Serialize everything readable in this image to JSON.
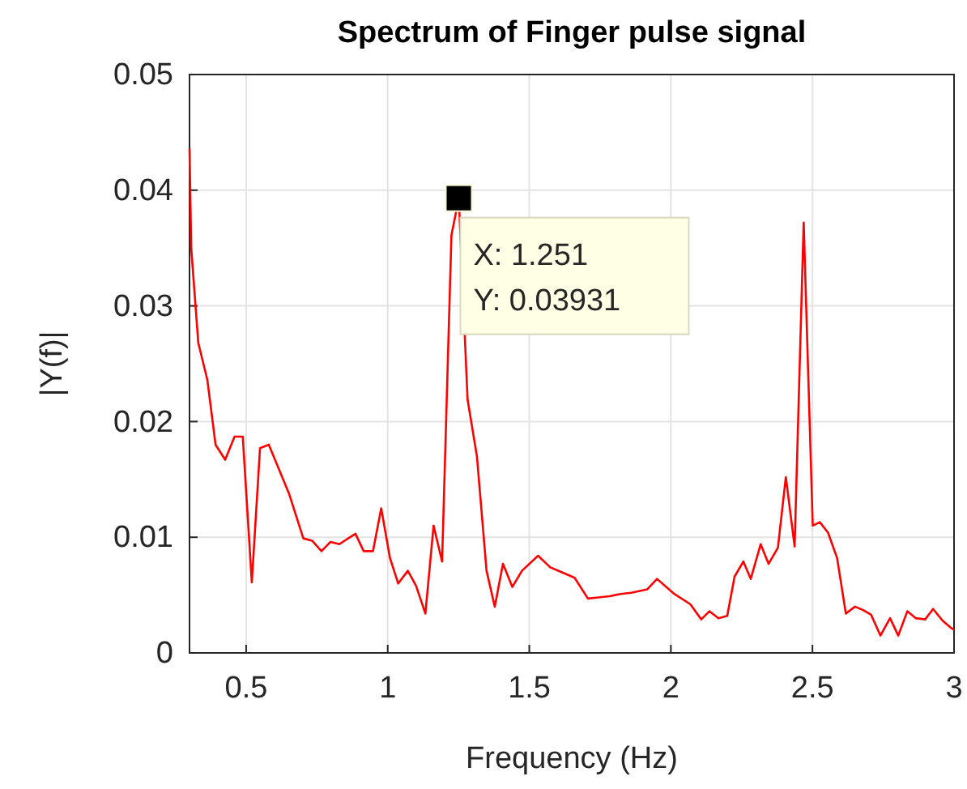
{
  "chart_data": {
    "type": "line",
    "title": "Spectrum of Finger pulse signal",
    "xlabel": "Frequency (Hz)",
    "ylabel": "|Y(f)|",
    "x": [
      0.3,
      0.306,
      0.331,
      0.363,
      0.392,
      0.426,
      0.459,
      0.488,
      0.52,
      0.549,
      0.58,
      0.612,
      0.651,
      0.702,
      0.733,
      0.766,
      0.798,
      0.829,
      0.886,
      0.915,
      0.948,
      0.977,
      1.008,
      1.037,
      1.071,
      1.1,
      1.133,
      1.162,
      1.192,
      1.225,
      1.251,
      1.282,
      1.315,
      1.349,
      1.378,
      1.407,
      1.44,
      1.474,
      1.531,
      1.574,
      1.612,
      1.66,
      1.707,
      1.745,
      1.784,
      1.822,
      1.86,
      1.917,
      1.951,
      2.012,
      2.069,
      2.107,
      2.136,
      2.168,
      2.199,
      2.225,
      2.256,
      2.282,
      2.317,
      2.345,
      2.378,
      2.406,
      2.437,
      2.469,
      2.501,
      2.526,
      2.555,
      2.587,
      2.618,
      2.65,
      2.679,
      2.707,
      2.74,
      2.774,
      2.803,
      2.835,
      2.865,
      2.898,
      2.926,
      2.959,
      2.987,
      3.0
    ],
    "series": [
      {
        "color": "#ff0000",
        "values": [
          0.0436,
          0.035,
          0.0268,
          0.0236,
          0.018,
          0.0167,
          0.0187,
          0.0187,
          0.0061,
          0.0177,
          0.018,
          0.0161,
          0.0138,
          0.0099,
          0.0097,
          0.0088,
          0.0096,
          0.0094,
          0.0103,
          0.0088,
          0.0088,
          0.0125,
          0.0082,
          0.006,
          0.0071,
          0.0058,
          0.0034,
          0.011,
          0.0079,
          0.0361,
          0.03931,
          0.0219,
          0.017,
          0.0071,
          0.004,
          0.0077,
          0.0057,
          0.0071,
          0.0084,
          0.0074,
          0.007,
          0.0065,
          0.0047,
          0.0048,
          0.0049,
          0.0051,
          0.0052,
          0.0055,
          0.0064,
          0.0051,
          0.0042,
          0.0029,
          0.0036,
          0.003,
          0.0032,
          0.0066,
          0.0079,
          0.0064,
          0.0094,
          0.0077,
          0.0091,
          0.0152,
          0.0092,
          0.0372,
          0.011,
          0.0113,
          0.0104,
          0.0082,
          0.0034,
          0.004,
          0.0037,
          0.0033,
          0.0015,
          0.003,
          0.0015,
          0.0036,
          0.003,
          0.0029,
          0.0038,
          0.0028,
          0.0022,
          0.002
        ]
      }
    ],
    "xlim": [
      0.3,
      3
    ],
    "xticks": [
      0.5,
      1,
      1.5,
      2,
      2.5,
      3
    ],
    "ylim": [
      0,
      0.05
    ],
    "yticks": [
      {
        "value": 0,
        "label": "0"
      },
      {
        "value": 0.01,
        "label": "0.01"
      },
      {
        "value": 0.02,
        "label": "0.02"
      },
      {
        "value": 0.03,
        "label": "0.03"
      },
      {
        "value": 0.04,
        "label": "0.04"
      },
      {
        "value": 0.05,
        "label": "0.05"
      }
    ],
    "grid": true,
    "marker": "none",
    "line_style": "solid",
    "annotations": [
      {
        "text": "X: 1.251\nY: 0.03931",
        "x": 1.251,
        "y": 0.03931
      }
    ]
  }
}
